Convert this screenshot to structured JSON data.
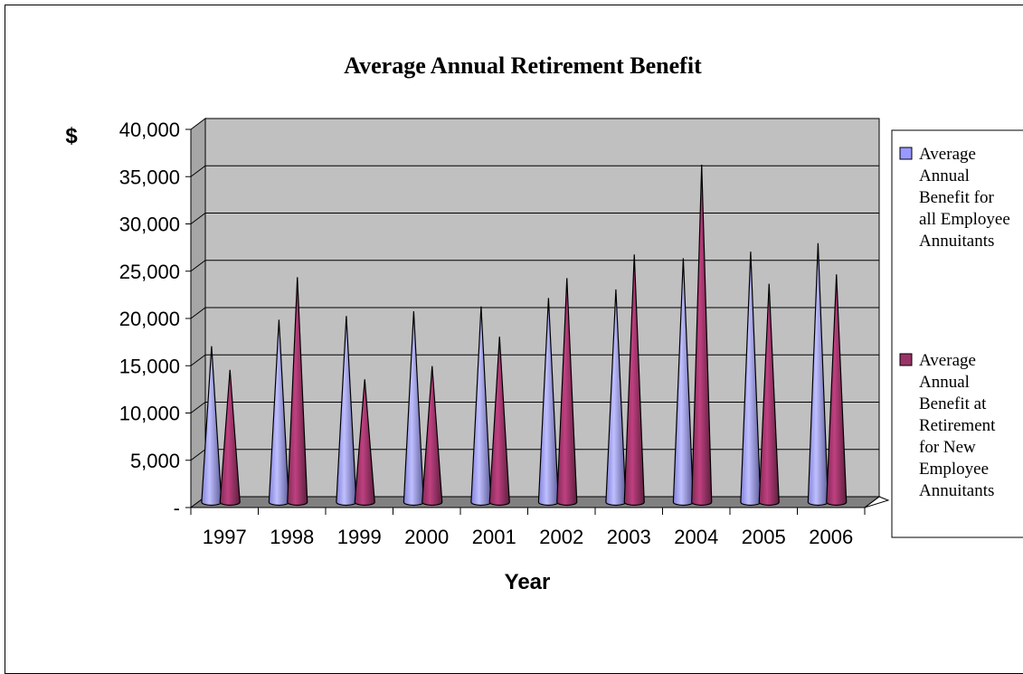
{
  "chart_data": {
    "type": "bar",
    "title": "Average Annual Retirement Benefit",
    "xlabel": "Year",
    "ylabel": "$",
    "ylim": [
      0,
      40000
    ],
    "ytick_values": [
      0,
      5000,
      10000,
      15000,
      20000,
      25000,
      30000,
      35000,
      40000
    ],
    "ytick_labels": [
      "-",
      "5,000",
      "10,000",
      "15,000",
      "20,000",
      "25,000",
      "30,000",
      "35,000",
      "40,000"
    ],
    "categories": [
      "1997",
      "1998",
      "1999",
      "2000",
      "2001",
      "2002",
      "2003",
      "2004",
      "2005",
      "2006"
    ],
    "series": [
      {
        "name": "Average Annual Benefit for all Employee Annuitants",
        "legend_lines": [
          "Average",
          "Annual",
          "Benefit for",
          "all Employee",
          "Annuitants"
        ],
        "color": "#9999ff",
        "values": [
          16300,
          19100,
          19500,
          20000,
          20500,
          21400,
          22300,
          25600,
          26300,
          27200
        ]
      },
      {
        "name": "Average Annual Benefit at Retirement for New Employee Annuitants",
        "legend_lines": [
          "Average",
          "Annual",
          "Benefit at",
          "Retirement",
          "for New",
          "Employee",
          "Annuitants"
        ],
        "color": "#993366",
        "values": [
          13800,
          23600,
          12800,
          14200,
          17300,
          23500,
          26000,
          35500,
          22900,
          23900
        ]
      }
    ],
    "grid": true,
    "legend_position": "right"
  }
}
